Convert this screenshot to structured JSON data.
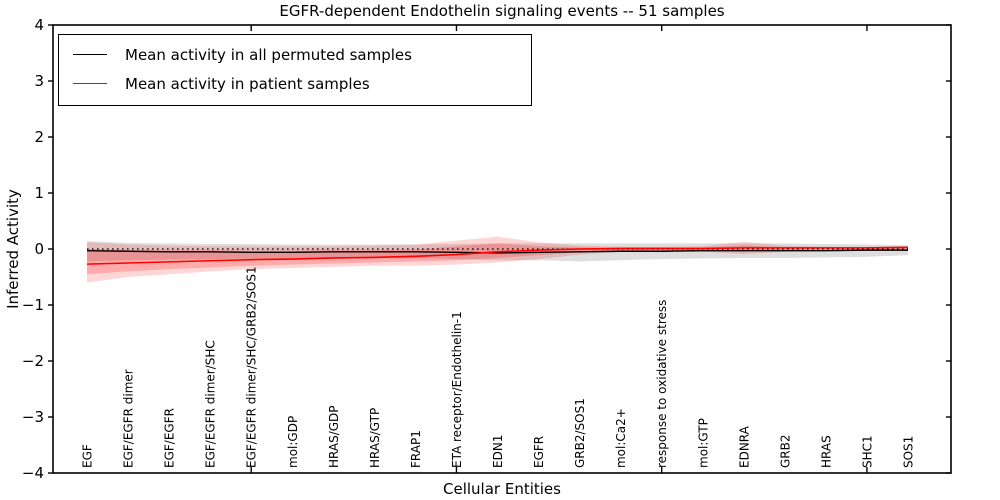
{
  "figure": {
    "title": "EGFR-dependent Endothelin signaling events -- 51 samples",
    "xlabel": "Cellular Entities",
    "ylabel": "Inferred Activity"
  },
  "legend": {
    "items": [
      {
        "label": "Mean activity in all permuted samples",
        "color": "#000000"
      },
      {
        "label": "Mean activity in patient samples",
        "color": "#ff0000"
      }
    ]
  },
  "chart_data": {
    "type": "line",
    "title": "EGFR-dependent Endothelin signaling events -- 51 samples",
    "xlabel": "Cellular Entities",
    "ylabel": "Inferred Activity",
    "ylim": [
      -4,
      4
    ],
    "yticks": [
      4,
      3,
      2,
      1,
      0,
      -1,
      -2,
      -3,
      -4
    ],
    "x_major_tick_indices": [
      4,
      9,
      14,
      19
    ],
    "grid": false,
    "legend_position": "upper left",
    "categories": [
      "EGF",
      "EGF/EGFR dimer",
      "EGF/EGFR",
      "EGF/EGFR dimer/SHC",
      "EGF/EGFR dimer/SHC/GRB2/SOS1",
      "mol:GDP",
      "HRAS/GDP",
      "HRAS/GTP",
      "FRAP1",
      "ETA receptor/Endothelin-1",
      "EDN1",
      "EGFR",
      "GRB2/SOS1",
      "mol:Ca2+",
      "response to oxidative stress",
      "mol:GTP",
      "EDNRA",
      "GRB2",
      "HRAS",
      "SHC1",
      "SOS1"
    ],
    "series": [
      {
        "name": "Mean activity in all permuted samples",
        "color": "#000000",
        "values": [
          -0.03,
          -0.04,
          -0.05,
          -0.05,
          -0.06,
          -0.06,
          -0.05,
          -0.05,
          -0.05,
          -0.06,
          -0.07,
          -0.06,
          -0.05,
          -0.04,
          -0.04,
          -0.03,
          -0.03,
          -0.03,
          -0.03,
          -0.02,
          -0.02
        ]
      },
      {
        "name": "Mean activity in patient samples",
        "color": "#ff0000",
        "values": [
          -0.27,
          -0.25,
          -0.23,
          -0.21,
          -0.19,
          -0.18,
          -0.16,
          -0.15,
          -0.13,
          -0.1,
          -0.05,
          -0.02,
          0.0,
          0.01,
          0.01,
          0.01,
          0.02,
          0.02,
          0.02,
          0.02,
          0.03
        ]
      }
    ],
    "bands": [
      {
        "name": "permuted samples range",
        "color": "rgba(0,0,0,0.13)",
        "hi": [
          0.14,
          0.11,
          0.1,
          0.09,
          0.09,
          0.08,
          0.08,
          0.08,
          0.08,
          0.09,
          0.1,
          0.1,
          0.1,
          0.1,
          0.1,
          0.1,
          0.1,
          0.1,
          0.09,
          0.08,
          0.07
        ],
        "lo": [
          -0.22,
          -0.2,
          -0.19,
          -0.18,
          -0.17,
          -0.17,
          -0.16,
          -0.16,
          -0.16,
          -0.18,
          -0.2,
          -0.2,
          -0.22,
          -0.2,
          -0.18,
          -0.17,
          -0.16,
          -0.16,
          -0.15,
          -0.14,
          -0.11
        ]
      },
      {
        "name": "patient samples range outer",
        "color": "rgba(255,0,0,0.16)",
        "hi": [
          0.12,
          0.08,
          0.06,
          0.05,
          0.05,
          0.05,
          0.05,
          0.06,
          0.08,
          0.15,
          0.22,
          0.12,
          0.06,
          0.04,
          0.04,
          0.05,
          0.13,
          0.06,
          0.04,
          0.04,
          0.04
        ],
        "lo": [
          -0.6,
          -0.5,
          -0.45,
          -0.4,
          -0.36,
          -0.34,
          -0.32,
          -0.3,
          -0.3,
          -0.28,
          -0.24,
          -0.18,
          -0.1,
          -0.05,
          -0.04,
          -0.05,
          -0.09,
          -0.05,
          -0.03,
          -0.03,
          -0.02
        ]
      },
      {
        "name": "patient samples range inner",
        "color": "rgba(255,0,0,0.20)",
        "hi": [
          0.0,
          -0.02,
          -0.02,
          -0.02,
          -0.03,
          -0.03,
          -0.02,
          -0.02,
          -0.01,
          0.05,
          0.1,
          0.05,
          0.03,
          0.02,
          0.02,
          0.02,
          0.07,
          0.03,
          0.03,
          0.03,
          0.03
        ],
        "lo": [
          -0.45,
          -0.4,
          -0.36,
          -0.33,
          -0.3,
          -0.28,
          -0.26,
          -0.24,
          -0.22,
          -0.2,
          -0.16,
          -0.11,
          -0.06,
          -0.03,
          -0.02,
          -0.03,
          -0.05,
          -0.02,
          -0.01,
          -0.01,
          -0.01
        ]
      }
    ],
    "reference_line": {
      "value": 0,
      "style": "dotted",
      "color": "#000000"
    }
  }
}
